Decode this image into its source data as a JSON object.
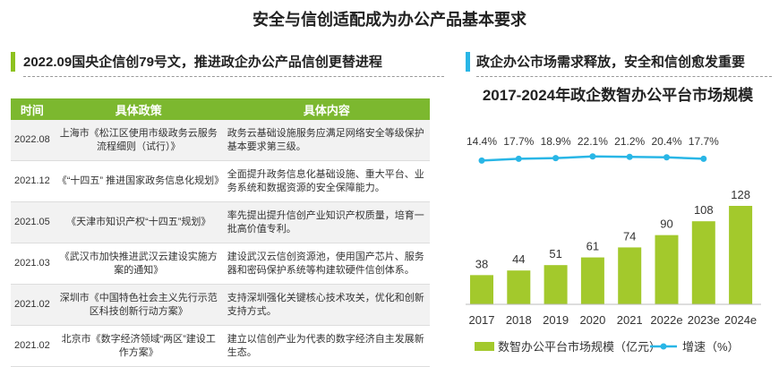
{
  "header": {
    "title": "安全与信创适配成为办公产品基本要求"
  },
  "left": {
    "section_title": "2022.09国央企信创79号文，推进政企办公产品信创更替进程"
  },
  "table": {
    "columns": [
      "时间",
      "具体政策",
      "具体内容"
    ],
    "rows": [
      [
        "2022.08",
        "上海市《松江区使用市级政务云服务流程细则（试行）》",
        "政务云基础设施服务应满足网络安全等级保护基本要求第三级。"
      ],
      [
        "2021.12",
        "《“十四五” 推进国家政务信息化规划》",
        "全面提升政务信息化基础设施、重大平台、业务系统和数据资源的安全保障能力。"
      ],
      [
        "2021.05",
        "《天津市知识产权“十四五”规划》",
        "率先提出提升信创产业知识产权质量，培育一批高价值专利。"
      ],
      [
        "2021.03",
        "《武汉市加快推进武汉云建设实施方案的通知》",
        "建设武汉云信创资源池，使用国产芯片、服务器和密码保护系统等构建软硬件信创体系。"
      ],
      [
        "2021.02",
        "深圳市《中国特色社会主义先行示范区科技创新行动方案》",
        "支持深圳强化关键核心技术攻关，优化和创新支持方式。"
      ],
      [
        "2021.02",
        "北京市《数字经济领域“两区”建设工作方案》",
        "建立以信创产业为代表的数字经济自主发展新生态。"
      ]
    ]
  },
  "right": {
    "section_title": "政企办公市场需求释放，安全和信创愈发重要"
  },
  "chart_data": {
    "type": "bar",
    "title": "2017-2024年政企数智办公平台市场规模",
    "categories": [
      "2017",
      "2018",
      "2019",
      "2020",
      "2021",
      "2022e",
      "2023e",
      "2024e"
    ],
    "series": [
      {
        "name": "数智办公平台市场规模（亿元）",
        "color": "#a3c92c",
        "values": [
          38,
          44,
          51,
          61,
          74,
          90,
          108,
          128
        ]
      },
      {
        "name": "增速（%）",
        "color": "#29b6e6",
        "type": "line",
        "values": [
          14.4,
          17.7,
          18.9,
          22.1,
          21.2,
          20.4,
          17.7,
          null
        ],
        "value_labels": [
          "14.4%",
          "17.7%",
          "18.9%",
          "22.1%",
          "21.2%",
          "20.4%",
          "17.7%",
          null
        ]
      }
    ]
  }
}
